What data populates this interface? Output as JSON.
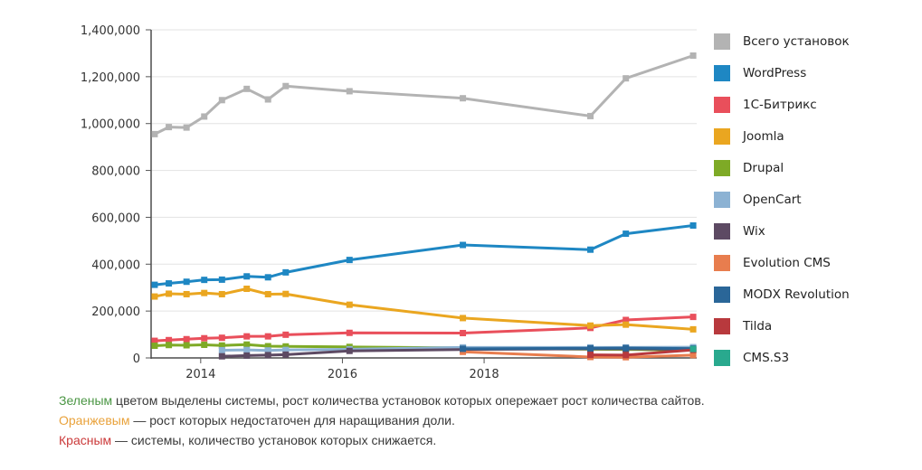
{
  "chart_data": {
    "type": "line",
    "title": "",
    "grid": true,
    "legend_position": "right",
    "x_axis": {
      "range": [
        2013.3,
        2021.0
      ],
      "ticks": [
        {
          "value": 2014,
          "label": "2014"
        },
        {
          "value": 2016,
          "label": "2016"
        },
        {
          "value": 2018,
          "label": "2018"
        }
      ]
    },
    "y_axis": {
      "range": [
        0,
        1400000
      ],
      "tick_step": 200000,
      "ticks": [
        {
          "value": 0,
          "label": "0"
        },
        {
          "value": 200000,
          "label": "200,000"
        },
        {
          "value": 400000,
          "label": "400,000"
        },
        {
          "value": 600000,
          "label": "600,000"
        },
        {
          "value": 800000,
          "label": "800,000"
        },
        {
          "value": 1000000,
          "label": "1,000,000"
        },
        {
          "value": 1200000,
          "label": "1,200,000"
        },
        {
          "value": 1400000,
          "label": "1,400,000"
        }
      ]
    },
    "x": [
      2013.35,
      2013.55,
      2013.8,
      2014.05,
      2014.3,
      2014.65,
      2014.95,
      2015.2,
      2016.1,
      2017.7,
      2019.5,
      2020.0,
      2020.95
    ],
    "series": [
      {
        "name": "Всего установок",
        "slug": "total-installs",
        "color": "#b3b3b3",
        "values": [
          955000,
          985000,
          983000,
          1030000,
          1100000,
          1148000,
          1103000,
          1160000,
          1138000,
          1108000,
          1032000,
          1193000,
          1290000
        ]
      },
      {
        "name": "WordPress",
        "slug": "wordpress",
        "color": "#1e87c3",
        "values": [
          312000,
          318000,
          325000,
          333000,
          334000,
          348000,
          344000,
          365000,
          418000,
          482000,
          462000,
          530000,
          565000
        ]
      },
      {
        "name": "1С-Битрикс",
        "slug": "bitrix",
        "color": "#e94f5b",
        "values": [
          73000,
          76000,
          80000,
          84000,
          86000,
          92000,
          92000,
          99000,
          107000,
          106000,
          128000,
          162000,
          175000
        ]
      },
      {
        "name": "Joomla",
        "slug": "joomla",
        "color": "#eaa620",
        "values": [
          262000,
          274000,
          272000,
          277000,
          272000,
          295000,
          272000,
          273000,
          227000,
          170000,
          138000,
          142000,
          122000
        ]
      },
      {
        "name": "Drupal",
        "slug": "drupal",
        "color": "#7eaa26",
        "values": [
          52000,
          55000,
          54000,
          56000,
          53000,
          57000,
          50000,
          49000,
          47000,
          43000,
          37000,
          36000,
          33000
        ]
      },
      {
        "name": "OpenCart",
        "slug": "opencart",
        "color": "#8cb2d3",
        "values": [
          null,
          null,
          null,
          null,
          33000,
          34000,
          32000,
          34000,
          37000,
          45000,
          45000,
          45000,
          46000
        ]
      },
      {
        "name": "Wix",
        "slug": "wix",
        "color": "#5d4a63",
        "values": [
          null,
          null,
          null,
          null,
          7000,
          10000,
          12000,
          14000,
          30000,
          36000,
          39000,
          39000,
          36000
        ]
      },
      {
        "name": "Evolution CMS",
        "slug": "evolution-cms",
        "color": "#e87d4e",
        "values": [
          null,
          null,
          null,
          null,
          null,
          null,
          null,
          null,
          null,
          26000,
          4000,
          3000,
          12000
        ]
      },
      {
        "name": "MODX Revolution",
        "slug": "modx-revolution",
        "color": "#2a6698",
        "values": [
          null,
          null,
          null,
          null,
          null,
          null,
          null,
          null,
          null,
          39000,
          41000,
          42000,
          40000
        ]
      },
      {
        "name": "Tilda",
        "slug": "tilda",
        "color": "#b8393d",
        "values": [
          null,
          null,
          null,
          null,
          null,
          null,
          null,
          null,
          null,
          null,
          13000,
          12000,
          34000
        ]
      },
      {
        "name": "CMS.S3",
        "slug": "cms-s3",
        "color": "#29a98e",
        "values": [
          null,
          null,
          null,
          null,
          null,
          null,
          null,
          null,
          null,
          null,
          null,
          null,
          38000
        ]
      }
    ]
  },
  "footnotes": [
    {
      "lead": "Зеленым",
      "lead_color": "#4b9644",
      "text": " цветом выделены системы, рост количества установок которых опережает рост количества сайтов."
    },
    {
      "lead": "Оранжевым",
      "lead_color": "#e9a23b",
      "text": " — рост которых недостаточен для наращивания доли."
    },
    {
      "lead": "Красным",
      "lead_color": "#cb3a3a",
      "text": " — системы, количество установок которых снижается."
    }
  ]
}
